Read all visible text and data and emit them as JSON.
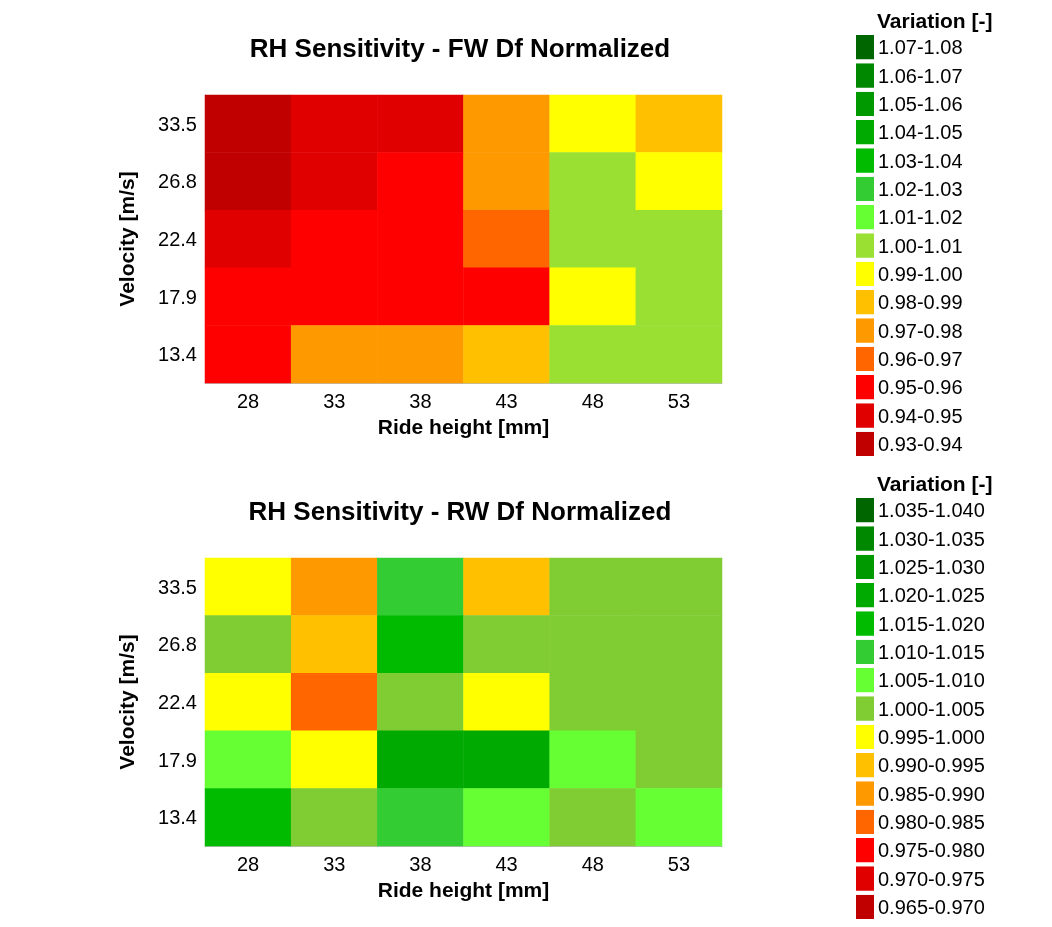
{
  "chart_data": [
    {
      "type": "heatmap",
      "title": "RH Sensitivity - FW Df Normalized",
      "xlabel": "Ride height [mm]",
      "ylabel": "Velocity [m/s]",
      "legend_title": "Variation [-]",
      "grid": false,
      "categories": [
        "28",
        "33",
        "38",
        "43",
        "48",
        "53"
      ],
      "y_categories": [
        "33.5",
        "26.8",
        "22.4",
        "17.9",
        "13.4"
      ],
      "cells": [
        [
          0.935,
          0.945,
          0.945,
          0.975,
          0.995,
          0.985
        ],
        [
          0.935,
          0.945,
          0.955,
          0.975,
          1.005,
          0.995
        ],
        [
          0.945,
          0.955,
          0.955,
          0.965,
          1.005,
          1.005
        ],
        [
          0.955,
          0.955,
          0.955,
          0.955,
          0.995,
          1.005
        ],
        [
          0.955,
          0.975,
          0.975,
          0.985,
          1.005,
          1.005
        ]
      ],
      "clim": [
        0.93,
        1.08
      ],
      "cticks": [
        {
          "value": 0.935,
          "label": "0.93-0.94"
        },
        {
          "value": 0.945,
          "label": "0.94-0.95"
        },
        {
          "value": 0.955,
          "label": "0.95-0.96"
        },
        {
          "value": 0.965,
          "label": "0.96-0.97"
        },
        {
          "value": 0.975,
          "label": "0.97-0.98"
        },
        {
          "value": 0.985,
          "label": "0.98-0.99"
        },
        {
          "value": 0.995,
          "label": "0.99-1.00"
        },
        {
          "value": 1.005,
          "label": "1.00-1.01"
        },
        {
          "value": 1.015,
          "label": "1.01-1.02"
        },
        {
          "value": 1.025,
          "label": "1.02-1.03"
        },
        {
          "value": 1.035,
          "label": "1.03-1.04"
        },
        {
          "value": 1.045,
          "label": "1.04-1.05"
        },
        {
          "value": 1.055,
          "label": "1.05-1.06"
        },
        {
          "value": 1.065,
          "label": "1.06-1.07"
        },
        {
          "value": 1.075,
          "label": "1.07-1.08"
        }
      ],
      "colors": [
        "#c00000",
        "#e00000",
        "#ff0000",
        "#ff6600",
        "#ff9900",
        "#ffc000",
        "#ffff00",
        "#99e033",
        "#66ff33",
        "#33cc33",
        "#00bb00",
        "#00aa00",
        "#009900",
        "#008800",
        "#006600"
      ]
    },
    {
      "type": "heatmap",
      "title": "RH Sensitivity - RW Df Normalized",
      "xlabel": "Ride height [mm]",
      "ylabel": "Velocity [m/s]",
      "legend_title": "Variation [-]",
      "grid": false,
      "categories": [
        "28",
        "33",
        "38",
        "43",
        "48",
        "53"
      ],
      "y_categories": [
        "33.5",
        "26.8",
        "22.4",
        "17.9",
        "13.4"
      ],
      "cells": [
        [
          0.9975,
          0.9875,
          1.0125,
          0.9925,
          1.0025,
          1.0025
        ],
        [
          1.0025,
          0.9925,
          1.0175,
          1.0025,
          1.0025,
          1.0025
        ],
        [
          0.9975,
          0.9825,
          1.0025,
          0.9975,
          1.0025,
          1.0025
        ],
        [
          1.0075,
          0.9975,
          1.0225,
          1.0225,
          1.0075,
          1.0025
        ],
        [
          1.0175,
          1.0025,
          1.0125,
          1.0075,
          1.0025,
          1.0075
        ]
      ],
      "clim": [
        0.965,
        1.04
      ],
      "cticks": [
        {
          "value": 0.9675,
          "label": "0.965-0.970"
        },
        {
          "value": 0.9725,
          "label": "0.970-0.975"
        },
        {
          "value": 0.9775,
          "label": "0.975-0.980"
        },
        {
          "value": 0.9825,
          "label": "0.980-0.985"
        },
        {
          "value": 0.9875,
          "label": "0.985-0.990"
        },
        {
          "value": 0.9925,
          "label": "0.990-0.995"
        },
        {
          "value": 0.9975,
          "label": "0.995-1.000"
        },
        {
          "value": 1.0025,
          "label": "1.000-1.005"
        },
        {
          "value": 1.0075,
          "label": "1.005-1.010"
        },
        {
          "value": 1.0125,
          "label": "1.010-1.015"
        },
        {
          "value": 1.0175,
          "label": "1.015-1.020"
        },
        {
          "value": 1.0225,
          "label": "1.020-1.025"
        },
        {
          "value": 1.0275,
          "label": "1.025-1.030"
        },
        {
          "value": 1.0325,
          "label": "1.030-1.035"
        },
        {
          "value": 1.0375,
          "label": "1.035-1.040"
        }
      ],
      "colors": [
        "#c00000",
        "#e00000",
        "#ff0000",
        "#ff6600",
        "#ff9900",
        "#ffc000",
        "#ffff00",
        "#80cc33",
        "#66ff33",
        "#33cc33",
        "#00bb00",
        "#00aa00",
        "#009900",
        "#008800",
        "#006600"
      ]
    }
  ]
}
